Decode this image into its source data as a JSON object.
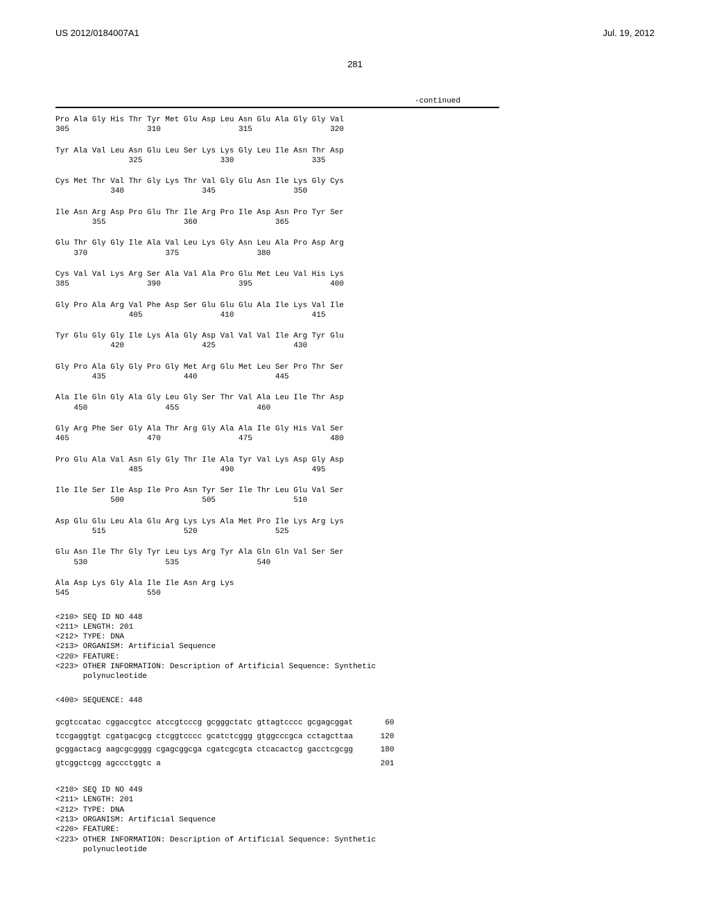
{
  "header": {
    "doc_id": "US 2012/0184007A1",
    "date": "Jul. 19, 2012"
  },
  "page_number": "281",
  "continued_label": "-continued",
  "protein_rows": [
    {
      "aa": "Pro Ala Gly His Thr Tyr Met Glu Asp Leu Asn Glu Ala Gly Gly Val",
      "nums": "305                 310                 315                 320"
    },
    {
      "aa": "Tyr Ala Val Leu Asn Glu Leu Ser Lys Lys Gly Leu Ile Asn Thr Asp",
      "nums": "                325                 330                 335"
    },
    {
      "aa": "Cys Met Thr Val Thr Gly Lys Thr Val Gly Glu Asn Ile Lys Gly Cys",
      "nums": "            340                 345                 350"
    },
    {
      "aa": "Ile Asn Arg Asp Pro Glu Thr Ile Arg Pro Ile Asp Asn Pro Tyr Ser",
      "nums": "        355                 360                 365"
    },
    {
      "aa": "Glu Thr Gly Gly Ile Ala Val Leu Lys Gly Asn Leu Ala Pro Asp Arg",
      "nums": "    370                 375                 380"
    },
    {
      "aa": "Cys Val Val Lys Arg Ser Ala Val Ala Pro Glu Met Leu Val His Lys",
      "nums": "385                 390                 395                 400"
    },
    {
      "aa": "Gly Pro Ala Arg Val Phe Asp Ser Glu Glu Glu Ala Ile Lys Val Ile",
      "nums": "                405                 410                 415"
    },
    {
      "aa": "Tyr Glu Gly Gly Ile Lys Ala Gly Asp Val Val Val Ile Arg Tyr Glu",
      "nums": "            420                 425                 430"
    },
    {
      "aa": "Gly Pro Ala Gly Gly Pro Gly Met Arg Glu Met Leu Ser Pro Thr Ser",
      "nums": "        435                 440                 445"
    },
    {
      "aa": "Ala Ile Gln Gly Ala Gly Leu Gly Ser Thr Val Ala Leu Ile Thr Asp",
      "nums": "    450                 455                 460"
    },
    {
      "aa": "Gly Arg Phe Ser Gly Ala Thr Arg Gly Ala Ala Ile Gly His Val Ser",
      "nums": "465                 470                 475                 480"
    },
    {
      "aa": "Pro Glu Ala Val Asn Gly Gly Thr Ile Ala Tyr Val Lys Asp Gly Asp",
      "nums": "                485                 490                 495"
    },
    {
      "aa": "Ile Ile Ser Ile Asp Ile Pro Asn Tyr Ser Ile Thr Leu Glu Val Ser",
      "nums": "            500                 505                 510"
    },
    {
      "aa": "Asp Glu Glu Leu Ala Glu Arg Lys Lys Ala Met Pro Ile Lys Arg Lys",
      "nums": "        515                 520                 525"
    },
    {
      "aa": "Glu Asn Ile Thr Gly Tyr Leu Lys Arg Tyr Ala Gln Gln Val Ser Ser",
      "nums": "    530                 535                 540"
    },
    {
      "aa": "Ala Asp Lys Gly Ala Ile Ile Asn Arg Lys",
      "nums": "545                 550"
    }
  ],
  "seq448": {
    "meta": "<210> SEQ ID NO 448\n<211> LENGTH: 201\n<212> TYPE: DNA\n<213> ORGANISM: Artificial Sequence\n<220> FEATURE:\n<223> OTHER INFORMATION: Description of Artificial Sequence: Synthetic\n      polynucleotide",
    "seq_label": "<400> SEQUENCE: 448",
    "lines": [
      {
        "seq": "gcgtccatac cggaccgtcc atccgtcccg gcgggctatc gttagtcccc gcgagcggat",
        "pos": "60"
      },
      {
        "seq": "tccgaggtgt cgatgacgcg ctcggtcccc gcatctcggg gtggcccgca cctagcttaa",
        "pos": "120"
      },
      {
        "seq": "gcggactacg aagcgcgggg cgagcggcga cgatcgcgta ctcacactcg gacctcgcgg",
        "pos": "180"
      },
      {
        "seq": "gtcggctcgg agccctggtc a",
        "pos": "201"
      }
    ]
  },
  "seq449": {
    "meta": "<210> SEQ ID NO 449\n<211> LENGTH: 201\n<212> TYPE: DNA\n<213> ORGANISM: Artificial Sequence\n<220> FEATURE:\n<223> OTHER INFORMATION: Description of Artificial Sequence: Synthetic\n      polynucleotide"
  }
}
